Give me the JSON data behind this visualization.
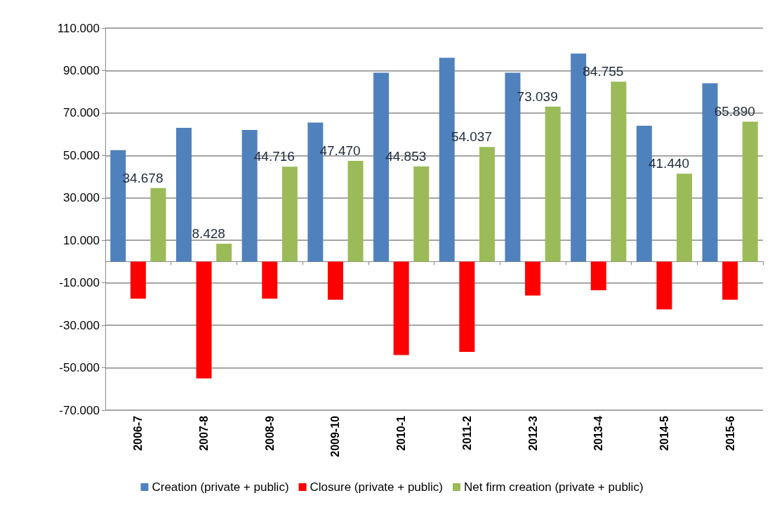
{
  "chart_data": {
    "type": "bar",
    "categories": [
      "2006-7",
      "2007-8",
      "2008-9",
      "2009-10",
      "2010-1",
      "2011-2",
      "2012-3",
      "2013-4",
      "2014-5",
      "2015-6"
    ],
    "series": [
      {
        "name": "Creation (private + public)",
        "color": "#4f81bd",
        "values": [
          52.5,
          63,
          62,
          65.5,
          89,
          96,
          89,
          98,
          64,
          84
        ]
      },
      {
        "name": "Closure (private + public)",
        "color": "#ff0000",
        "values": [
          -17.5,
          -55,
          -17.5,
          -18,
          -44,
          -42.5,
          -16,
          -13.5,
          -22.5,
          -18
        ]
      },
      {
        "name": "Net firm creation (private + public)",
        "color": "#9bbb59",
        "values": [
          34.678,
          8.428,
          44.716,
          47.47,
          44.853,
          54.037,
          73.039,
          84.755,
          41.44,
          65.89
        ],
        "value_labels": [
          "34.678",
          "8.428",
          "44.716",
          "47.470",
          "44.853",
          "54.037",
          "73.039",
          "84.755",
          "41.440",
          "65.890"
        ]
      }
    ],
    "ylim": [
      -70,
      110
    ],
    "yticks": [
      {
        "value": -70,
        "label": "-70.000"
      },
      {
        "value": -50,
        "label": "-50.000"
      },
      {
        "value": -30,
        "label": "-30.000"
      },
      {
        "value": -10,
        "label": "-10.000"
      },
      {
        "value": 10,
        "label": "10.000"
      },
      {
        "value": 30,
        "label": "30.000"
      },
      {
        "value": 50,
        "label": "50.000"
      },
      {
        "value": 70,
        "label": "70.000"
      },
      {
        "value": 90,
        "label": "90.000"
      },
      {
        "value": 110,
        "label": "110.000"
      }
    ],
    "grid": "y",
    "legend": "bottom"
  }
}
